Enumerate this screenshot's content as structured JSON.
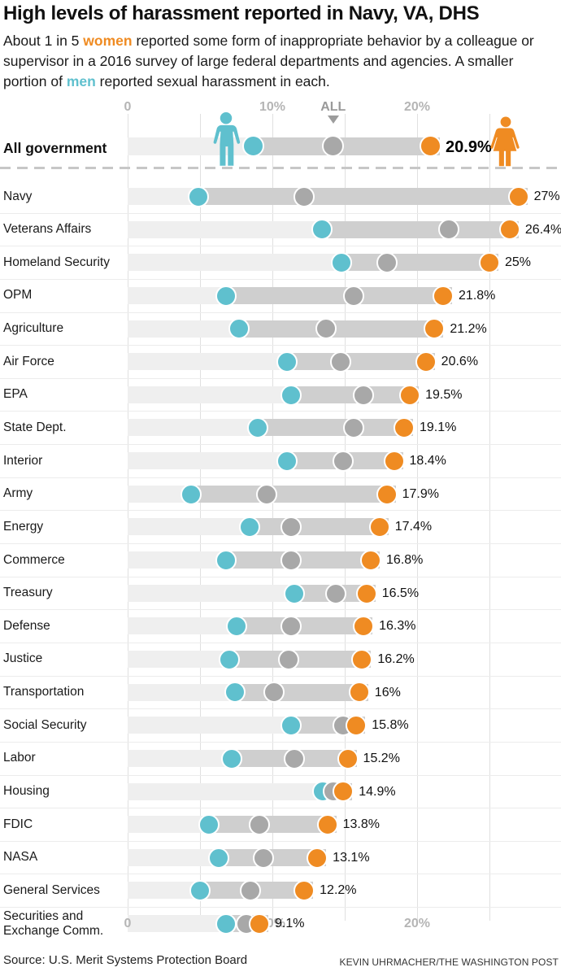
{
  "header": {
    "title": "High levels of harassment reported in Navy, VA, DHS",
    "sub": {
      "p1": "About 1 in 5 ",
      "women": "women",
      "p2": " reported some form of inappropriate behavior by a colleague or supervisor in a 2016 survey of large federal departments and agencies. A smaller portion of ",
      "men": "men",
      "p3": " reported sexual harassment in each."
    }
  },
  "colors": {
    "women": "#ef8b22",
    "men": "#5fc0ce",
    "all": "#a8a8a8",
    "track": "#cfcfcf",
    "track_light": "#efefef"
  },
  "chart_data": {
    "type": "scatter",
    "variant": "dumbbell-dot-plot",
    "x_unit": "%",
    "xlim": [
      0,
      30
    ],
    "grid_pcts": [
      0,
      5,
      10,
      15,
      20,
      25
    ],
    "axis": {
      "top_ticks": [
        {
          "label": "0",
          "pct": 0
        },
        {
          "label": "10%",
          "pct": 10
        },
        {
          "label": "ALL",
          "pct": 14.2,
          "marker": true
        },
        {
          "label": "20%",
          "pct": 20
        }
      ],
      "bottom_ticks": [
        {
          "label": "0",
          "pct": 0
        },
        {
          "label": "10%",
          "pct": 10
        },
        {
          "label": "20%",
          "pct": 20
        }
      ]
    },
    "legend": [
      {
        "name": "Women",
        "color": "#ef8b22"
      },
      {
        "name": "All employees",
        "color": "#a8a8a8"
      },
      {
        "name": "Men",
        "color": "#5fc0ce"
      }
    ],
    "hero": {
      "label": "All government",
      "men": 8.7,
      "all": 14.2,
      "women": 20.9,
      "women_label": "20.9%"
    },
    "rows": [
      {
        "label": "Navy",
        "men": 4.9,
        "all": 12.2,
        "women": 27,
        "women_label": "27%"
      },
      {
        "label": "Veterans Affairs",
        "men": 13.4,
        "all": 22.2,
        "women": 26.4,
        "women_label": "26.4%"
      },
      {
        "label": "Homeland Security",
        "men": 14.8,
        "all": 17.9,
        "women": 25,
        "women_label": "25%"
      },
      {
        "label": "OPM",
        "men": 6.8,
        "all": 15.6,
        "women": 21.8,
        "women_label": "21.8%"
      },
      {
        "label": "Agriculture",
        "men": 7.7,
        "all": 13.7,
        "women": 21.2,
        "women_label": "21.2%"
      },
      {
        "label": "Air Force",
        "men": 11.0,
        "all": 14.7,
        "women": 20.6,
        "women_label": "20.6%"
      },
      {
        "label": "EPA",
        "men": 11.3,
        "all": 16.3,
        "women": 19.5,
        "women_label": "19.5%"
      },
      {
        "label": "State Dept.",
        "men": 9.0,
        "all": 15.6,
        "women": 19.1,
        "women_label": "19.1%"
      },
      {
        "label": "Interior",
        "men": 11.0,
        "all": 14.9,
        "women": 18.4,
        "women_label": "18.4%"
      },
      {
        "label": "Army",
        "men": 4.4,
        "all": 9.6,
        "women": 17.9,
        "women_label": "17.9%"
      },
      {
        "label": "Energy",
        "men": 8.4,
        "all": 11.3,
        "women": 17.4,
        "women_label": "17.4%"
      },
      {
        "label": "Commerce",
        "men": 6.8,
        "all": 11.3,
        "women": 16.8,
        "women_label": "16.8%"
      },
      {
        "label": "Treasury",
        "men": 11.5,
        "all": 14.4,
        "women": 16.5,
        "women_label": "16.5%"
      },
      {
        "label": "Defense",
        "men": 7.5,
        "all": 11.3,
        "women": 16.3,
        "women_label": "16.3%"
      },
      {
        "label": "Justice",
        "men": 7.0,
        "all": 11.1,
        "women": 16.2,
        "women_label": "16.2%"
      },
      {
        "label": "Transportation",
        "men": 7.4,
        "all": 10.1,
        "women": 16,
        "women_label": "16%"
      },
      {
        "label": "Social Security",
        "men": 11.3,
        "all": 14.9,
        "women": 15.8,
        "women_label": "15.8%"
      },
      {
        "label": "Labor",
        "men": 7.2,
        "all": 11.5,
        "women": 15.2,
        "women_label": "15.2%"
      },
      {
        "label": "Housing",
        "men": 13.5,
        "all": 14.2,
        "women": 14.9,
        "women_label": "14.9%"
      },
      {
        "label": "FDIC",
        "men": 5.6,
        "all": 9.1,
        "women": 13.8,
        "women_label": "13.8%"
      },
      {
        "label": "NASA",
        "men": 6.3,
        "all": 9.4,
        "women": 13.1,
        "women_label": "13.1%"
      },
      {
        "label": "General Services",
        "men": 5.0,
        "all": 8.5,
        "women": 12.2,
        "women_label": "12.2%"
      },
      {
        "label": "Securities and Exchange Comm.",
        "men": 6.8,
        "all": 8.2,
        "women": 9.1,
        "women_label": "9.1%"
      }
    ]
  },
  "footer": {
    "source": "Source: U.S. Merit Systems Protection Board",
    "credit": "KEVIN UHRMACHER/THE WASHINGTON POST"
  }
}
